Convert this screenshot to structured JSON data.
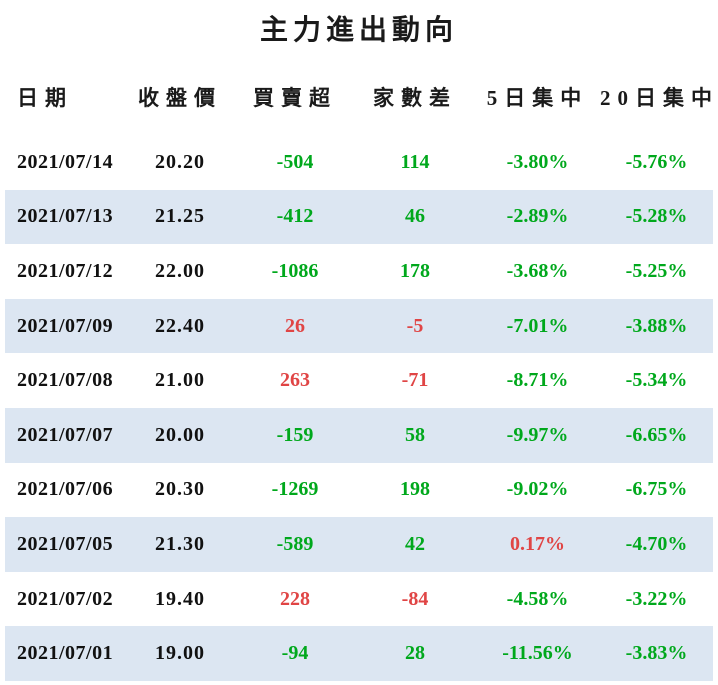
{
  "title": "主力進出動向",
  "colors": {
    "green": "#00a81c",
    "red": "#e04545",
    "stripe": "#dce6f2",
    "text": "#111111"
  },
  "table": {
    "columns": [
      {
        "key": "date",
        "label": "日期"
      },
      {
        "key": "close",
        "label": "收盤價"
      },
      {
        "key": "net",
        "label": "買賣超"
      },
      {
        "key": "diff",
        "label": "家數差"
      },
      {
        "key": "c5",
        "label": "5日集中"
      },
      {
        "key": "c20",
        "label": "20日集中"
      }
    ],
    "rows": [
      {
        "date": "2021/07/14",
        "close": "20.20",
        "net": {
          "text": "-504",
          "color": "green"
        },
        "diff": {
          "text": "114",
          "color": "green"
        },
        "c5": {
          "text": "-3.80%",
          "color": "green"
        },
        "c20": {
          "text": "-5.76%",
          "color": "green"
        }
      },
      {
        "date": "2021/07/13",
        "close": "21.25",
        "net": {
          "text": "-412",
          "color": "green"
        },
        "diff": {
          "text": "46",
          "color": "green"
        },
        "c5": {
          "text": "-2.89%",
          "color": "green"
        },
        "c20": {
          "text": "-5.28%",
          "color": "green"
        }
      },
      {
        "date": "2021/07/12",
        "close": "22.00",
        "net": {
          "text": "-1086",
          "color": "green"
        },
        "diff": {
          "text": "178",
          "color": "green"
        },
        "c5": {
          "text": "-3.68%",
          "color": "green"
        },
        "c20": {
          "text": "-5.25%",
          "color": "green"
        }
      },
      {
        "date": "2021/07/09",
        "close": "22.40",
        "net": {
          "text": "26",
          "color": "red"
        },
        "diff": {
          "text": "-5",
          "color": "red"
        },
        "c5": {
          "text": "-7.01%",
          "color": "green"
        },
        "c20": {
          "text": "-3.88%",
          "color": "green"
        }
      },
      {
        "date": "2021/07/08",
        "close": "21.00",
        "net": {
          "text": "263",
          "color": "red"
        },
        "diff": {
          "text": "-71",
          "color": "red"
        },
        "c5": {
          "text": "-8.71%",
          "color": "green"
        },
        "c20": {
          "text": "-5.34%",
          "color": "green"
        }
      },
      {
        "date": "2021/07/07",
        "close": "20.00",
        "net": {
          "text": "-159",
          "color": "green"
        },
        "diff": {
          "text": "58",
          "color": "green"
        },
        "c5": {
          "text": "-9.97%",
          "color": "green"
        },
        "c20": {
          "text": "-6.65%",
          "color": "green"
        }
      },
      {
        "date": "2021/07/06",
        "close": "20.30",
        "net": {
          "text": "-1269",
          "color": "green"
        },
        "diff": {
          "text": "198",
          "color": "green"
        },
        "c5": {
          "text": "-9.02%",
          "color": "green"
        },
        "c20": {
          "text": "-6.75%",
          "color": "green"
        }
      },
      {
        "date": "2021/07/05",
        "close": "21.30",
        "net": {
          "text": "-589",
          "color": "green"
        },
        "diff": {
          "text": "42",
          "color": "green"
        },
        "c5": {
          "text": "0.17%",
          "color": "red"
        },
        "c20": {
          "text": "-4.70%",
          "color": "green"
        }
      },
      {
        "date": "2021/07/02",
        "close": "19.40",
        "net": {
          "text": "228",
          "color": "red"
        },
        "diff": {
          "text": "-84",
          "color": "red"
        },
        "c5": {
          "text": "-4.58%",
          "color": "green"
        },
        "c20": {
          "text": "-3.22%",
          "color": "green"
        }
      },
      {
        "date": "2021/07/01",
        "close": "19.00",
        "net": {
          "text": "-94",
          "color": "green"
        },
        "diff": {
          "text": "28",
          "color": "green"
        },
        "c5": {
          "text": "-11.56%",
          "color": "green"
        },
        "c20": {
          "text": "-3.83%",
          "color": "green"
        }
      }
    ]
  }
}
